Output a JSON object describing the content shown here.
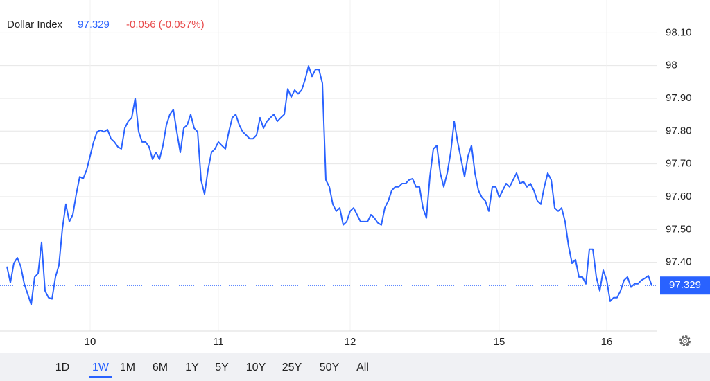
{
  "header": {
    "name": "Dollar Index",
    "last": "97.329",
    "change": "-0.056 (-0.057%)"
  },
  "chart_data": {
    "type": "line",
    "series": [
      {
        "name": "Dollar Index",
        "color": "#2962ff",
        "values": [
          97.387,
          97.338,
          97.397,
          97.414,
          97.387,
          97.334,
          97.303,
          97.271,
          97.355,
          97.366,
          97.461,
          97.313,
          97.292,
          97.288,
          97.355,
          97.391,
          97.503,
          97.577,
          97.524,
          97.545,
          97.608,
          97.661,
          97.655,
          97.682,
          97.724,
          97.767,
          97.798,
          97.803,
          97.798,
          97.805,
          97.777,
          97.767,
          97.752,
          97.746,
          97.809,
          97.83,
          97.841,
          97.9,
          97.798,
          97.767,
          97.767,
          97.752,
          97.714,
          97.735,
          97.714,
          97.756,
          97.819,
          97.851,
          97.866,
          97.798,
          97.735,
          97.809,
          97.819,
          97.851,
          97.809,
          97.798,
          97.651,
          97.608,
          97.682,
          97.735,
          97.746,
          97.767,
          97.756,
          97.746,
          97.798,
          97.841,
          97.851,
          97.819,
          97.798,
          97.788,
          97.777,
          97.777,
          97.788,
          97.841,
          97.809,
          97.83,
          97.841,
          97.851,
          97.83,
          97.841,
          97.851,
          97.929,
          97.904,
          97.925,
          97.914,
          97.925,
          97.957,
          97.999,
          97.967,
          97.988,
          97.988,
          97.946,
          97.651,
          97.63,
          97.577,
          97.556,
          97.566,
          97.514,
          97.524,
          97.556,
          97.566,
          97.545,
          97.524,
          97.524,
          97.524,
          97.545,
          97.535,
          97.52,
          97.514,
          97.566,
          97.587,
          97.619,
          97.63,
          97.63,
          97.64,
          97.64,
          97.651,
          97.655,
          97.63,
          97.63,
          97.566,
          97.535,
          97.661,
          97.746,
          97.756,
          97.672,
          97.63,
          97.672,
          97.735,
          97.83,
          97.767,
          97.714,
          97.661,
          97.724,
          97.756,
          97.672,
          97.619,
          97.598,
          97.587,
          97.556,
          97.63,
          97.63,
          97.598,
          97.619,
          97.64,
          97.63,
          97.651,
          97.672,
          97.64,
          97.646,
          97.63,
          97.64,
          97.619,
          97.587,
          97.577,
          97.63,
          97.672,
          97.651,
          97.566,
          97.556,
          97.566,
          97.524,
          97.45,
          97.397,
          97.408,
          97.355,
          97.355,
          97.334,
          97.44,
          97.44,
          97.355,
          97.313,
          97.376,
          97.345,
          97.281,
          97.292,
          97.292,
          97.313,
          97.345,
          97.355,
          97.324,
          97.334,
          97.334,
          97.345,
          97.351,
          97.359,
          97.329
        ]
      }
    ],
    "last_value": {
      "value": 97.329,
      "label": "97.329"
    },
    "xlim": [
      0,
      186
    ],
    "xticks": [
      {
        "value": 24,
        "label": "10"
      },
      {
        "value": 61,
        "label": "11"
      },
      {
        "value": 99,
        "label": "12"
      },
      {
        "value": 142,
        "label": "15"
      },
      {
        "value": 173,
        "label": "16"
      }
    ],
    "ylim": [
      97.19,
      98.2
    ],
    "yticks": [
      {
        "value": 97.4,
        "label": "97.40"
      },
      {
        "value": 97.5,
        "label": "97.50"
      },
      {
        "value": 97.6,
        "label": "97.60"
      },
      {
        "value": 97.7,
        "label": "97.70"
      },
      {
        "value": 97.8,
        "label": "97.80"
      },
      {
        "value": 97.9,
        "label": "97.90"
      },
      98,
      {
        "value": 98.1,
        "label": "98.10"
      }
    ],
    "grid": true
  },
  "range_buttons": [
    "1D",
    "1W",
    "1M",
    "6M",
    "1Y",
    "5Y",
    "10Y",
    "25Y",
    "50Y",
    "All"
  ],
  "selected_range": "1W"
}
